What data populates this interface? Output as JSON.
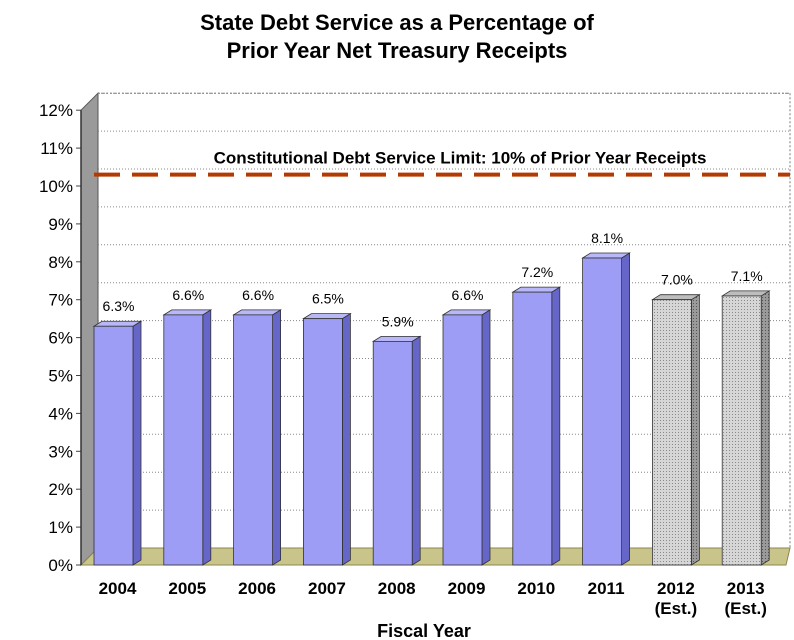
{
  "chart_data": {
    "type": "bar",
    "title_lines": [
      "State Debt Service as a Percentage of",
      "Prior Year Net Treasury Receipts"
    ],
    "xlabel": "Fiscal Year",
    "ylabel": "",
    "ylim": [
      0,
      12
    ],
    "y_ticks": [
      "0%",
      "1%",
      "2%",
      "3%",
      "4%",
      "5%",
      "6%",
      "7%",
      "8%",
      "9%",
      "10%",
      "11%",
      "12%"
    ],
    "categories": [
      [
        "2004"
      ],
      [
        "2005"
      ],
      [
        "2006"
      ],
      [
        "2007"
      ],
      [
        "2008"
      ],
      [
        "2009"
      ],
      [
        "2010"
      ],
      [
        "2011"
      ],
      [
        "2012",
        "(Est.)"
      ],
      [
        "2013",
        "(Est.)"
      ]
    ],
    "values": [
      6.3,
      6.6,
      6.6,
      6.5,
      5.9,
      6.6,
      7.2,
      8.1,
      7.0,
      7.1
    ],
    "data_labels": [
      "6.3%",
      "6.6%",
      "6.6%",
      "6.5%",
      "5.9%",
      "6.6%",
      "7.2%",
      "8.1%",
      "7.0%",
      "7.1%"
    ],
    "estimated": [
      false,
      false,
      false,
      false,
      false,
      false,
      false,
      false,
      true,
      true
    ],
    "reference_line": {
      "value": 10.3,
      "label": "Constitutional Debt Service Limit: 10% of Prior Year Receipts",
      "color": "#b33a00"
    },
    "colors": {
      "actual": "#9d9df5",
      "actual_side": "#6666c8",
      "estimated": "#cfcfcf",
      "estimated_side": "#9a9a9a",
      "floor": "#c9c58a"
    },
    "grid": true
  }
}
